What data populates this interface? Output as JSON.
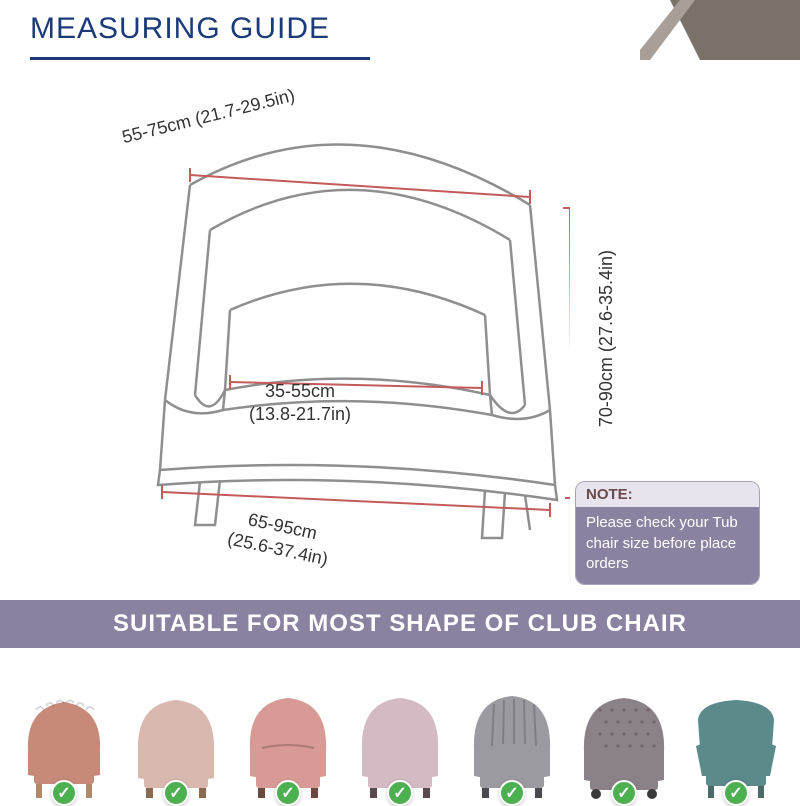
{
  "header": {
    "title": "MEASURING GUIDE",
    "title_color": "#1a3a7a",
    "underline_color": "#1a3a7a",
    "accent_color": "#7a7268"
  },
  "diagram": {
    "line_color": "#8f8f8f",
    "dimension_color": "#c45a5a",
    "text_color": "#333333",
    "back_top": {
      "cm": "55-75cm",
      "in": "(21.7-29.5in)"
    },
    "height": {
      "cm": "70-90cm",
      "in": "(27.6-35.4in)"
    },
    "seat": {
      "cm": "35-55cm",
      "in": "(13.8-21.7in)"
    },
    "front": {
      "cm": "65-95cm",
      "in": "(25.6-37.4in)"
    }
  },
  "note": {
    "header_label": "NOTE:",
    "header_bg": "#e8e4ee",
    "header_text_color": "#6a4a4a",
    "body_bg": "#8a82a0",
    "body_text": "Please check your Tub chair size before place orders"
  },
  "banner": {
    "text": "SUITABLE FOR MOST SHAPE OF CLUB CHAIR",
    "bg": "#8a82a0",
    "text_color": "#ffffff"
  },
  "chairs": [
    {
      "color": "#c88a78",
      "check": true
    },
    {
      "color": "#d9b8b0",
      "check": true
    },
    {
      "color": "#d89a94",
      "check": true
    },
    {
      "color": "#d4bac2",
      "check": true
    },
    {
      "color": "#9a9aa0",
      "check": true
    },
    {
      "color": "#8a8288",
      "check": true
    },
    {
      "color": "#5a8a8a",
      "check": true
    }
  ],
  "check_color": "#4caf50"
}
